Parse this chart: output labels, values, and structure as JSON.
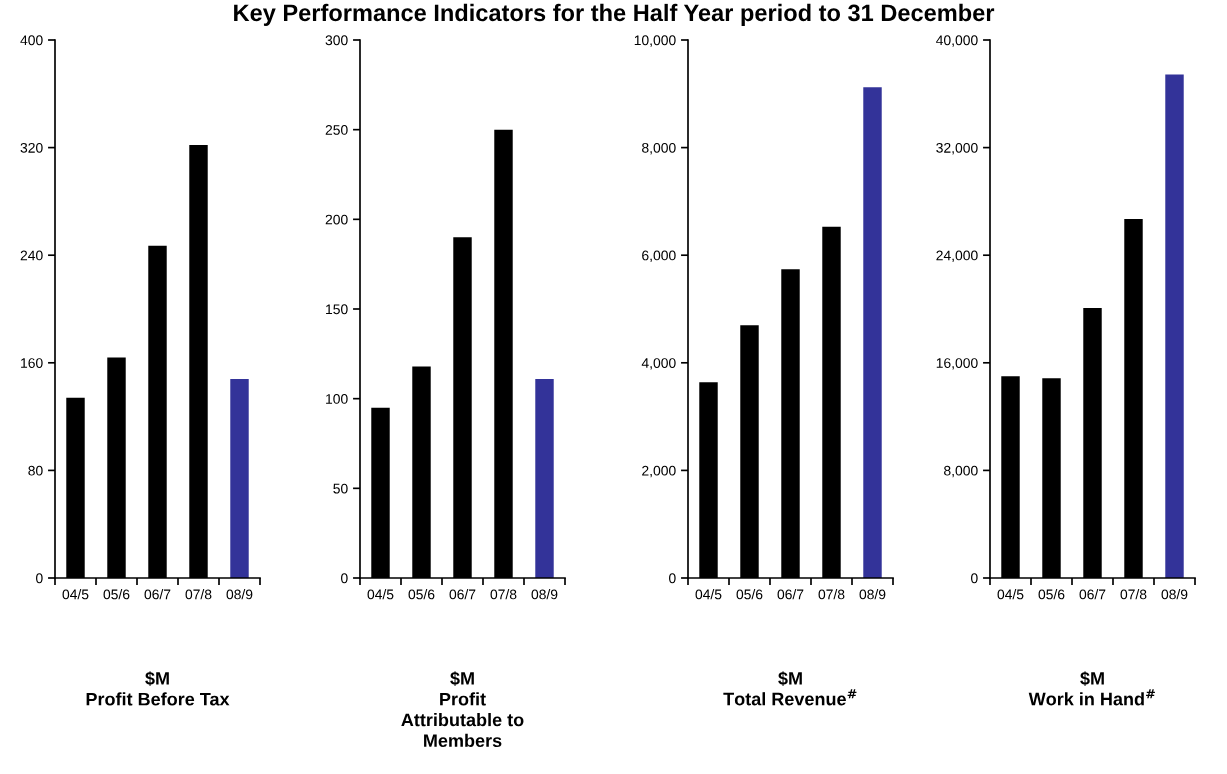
{
  "chart_data": [
    {
      "type": "bar",
      "title": "Key Performance Indicators for the Half Year period to 31 December",
      "xlabel": "$M\nProfit Before Tax",
      "categories": [
        "04/5",
        "05/6",
        "06/7",
        "07/8",
        "08/9"
      ],
      "values": [
        134,
        164,
        247,
        322,
        148
      ],
      "colors": [
        "#000000",
        "#000000",
        "#000000",
        "#000000",
        "#333399"
      ],
      "ylim": [
        0,
        400
      ],
      "yticks": [
        0,
        80,
        160,
        240,
        320,
        400
      ],
      "grid": false,
      "legend": false
    },
    {
      "type": "bar",
      "xlabel": "$M\nProfit\nAttributable to\nMembers",
      "categories": [
        "04/5",
        "05/6",
        "06/7",
        "07/8",
        "08/9"
      ],
      "values": [
        95,
        118,
        190,
        250,
        111
      ],
      "colors": [
        "#000000",
        "#000000",
        "#000000",
        "#000000",
        "#333399"
      ],
      "ylim": [
        0,
        300
      ],
      "yticks": [
        0,
        50,
        100,
        150,
        200,
        250,
        300
      ],
      "grid": false,
      "legend": false
    },
    {
      "type": "bar",
      "xlabel": "$M\nTotal Revenue$^{#}$",
      "categories": [
        "04/5",
        "05/6",
        "06/7",
        "07/8",
        "08/9"
      ],
      "values": [
        3640,
        4700,
        5740,
        6530,
        9120
      ],
      "colors": [
        "#000000",
        "#000000",
        "#000000",
        "#000000",
        "#333399"
      ],
      "ylim": [
        0,
        10000
      ],
      "yticks": [
        {
          "value": 0,
          "label": "0"
        },
        {
          "value": 2000,
          "label": "2,000"
        },
        {
          "value": 4000,
          "label": "4,000"
        },
        {
          "value": 6000,
          "label": "6,000"
        },
        {
          "value": 8000,
          "label": "8,000"
        },
        {
          "value": 10000,
          "label": "10,000"
        }
      ],
      "grid": false,
      "legend": false
    },
    {
      "type": "bar",
      "xlabel": "$M\nWork in Hand$^{#}$",
      "categories": [
        "04/5",
        "05/6",
        "06/7",
        "07/8",
        "08/9"
      ],
      "values": [
        15000,
        14850,
        20070,
        26700,
        37430
      ],
      "colors": [
        "#000000",
        "#000000",
        "#000000",
        "#000000",
        "#333399"
      ],
      "ylim": [
        0,
        40000
      ],
      "yticks": [
        {
          "value": 0,
          "label": "0"
        },
        {
          "value": 8000,
          "label": "8,000"
        },
        {
          "value": 16000,
          "label": "16,000"
        },
        {
          "value": 24000,
          "label": "24,000"
        },
        {
          "value": 32000,
          "label": "32,000"
        },
        {
          "value": 40000,
          "label": "40,000"
        }
      ],
      "grid": false,
      "legend": false
    }
  ]
}
